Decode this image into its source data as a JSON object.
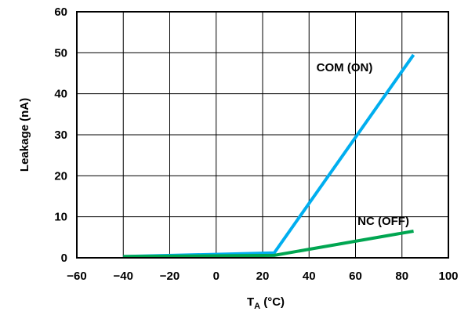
{
  "chart_data": {
    "type": "line",
    "title": "",
    "xlabel": {
      "main": "T",
      "sub": "A",
      "unit": " (°C)"
    },
    "ylabel": "Leakage (nA)",
    "xlim": [
      -60,
      100
    ],
    "ylim": [
      0,
      60
    ],
    "x_ticks": [
      -60,
      -40,
      -20,
      0,
      20,
      40,
      60,
      80,
      100
    ],
    "y_ticks": [
      0,
      10,
      20,
      30,
      40,
      50,
      60
    ],
    "x_tick_labels": [
      "−60",
      "−40",
      "−20",
      "0",
      "20",
      "40",
      "60",
      "80",
      "100"
    ],
    "y_tick_labels": [
      "0",
      "10",
      "20",
      "30",
      "40",
      "50",
      "60"
    ],
    "grid": true,
    "series": [
      {
        "name": "COM (ON)",
        "color": "#00aeef",
        "x": [
          -40,
          25,
          85
        ],
        "y": [
          0.3,
          1.2,
          49.5
        ]
      },
      {
        "name": "NC (OFF)",
        "color": "#00a651",
        "x": [
          -40,
          25,
          85
        ],
        "y": [
          0.3,
          0.6,
          6.5
        ]
      }
    ]
  }
}
